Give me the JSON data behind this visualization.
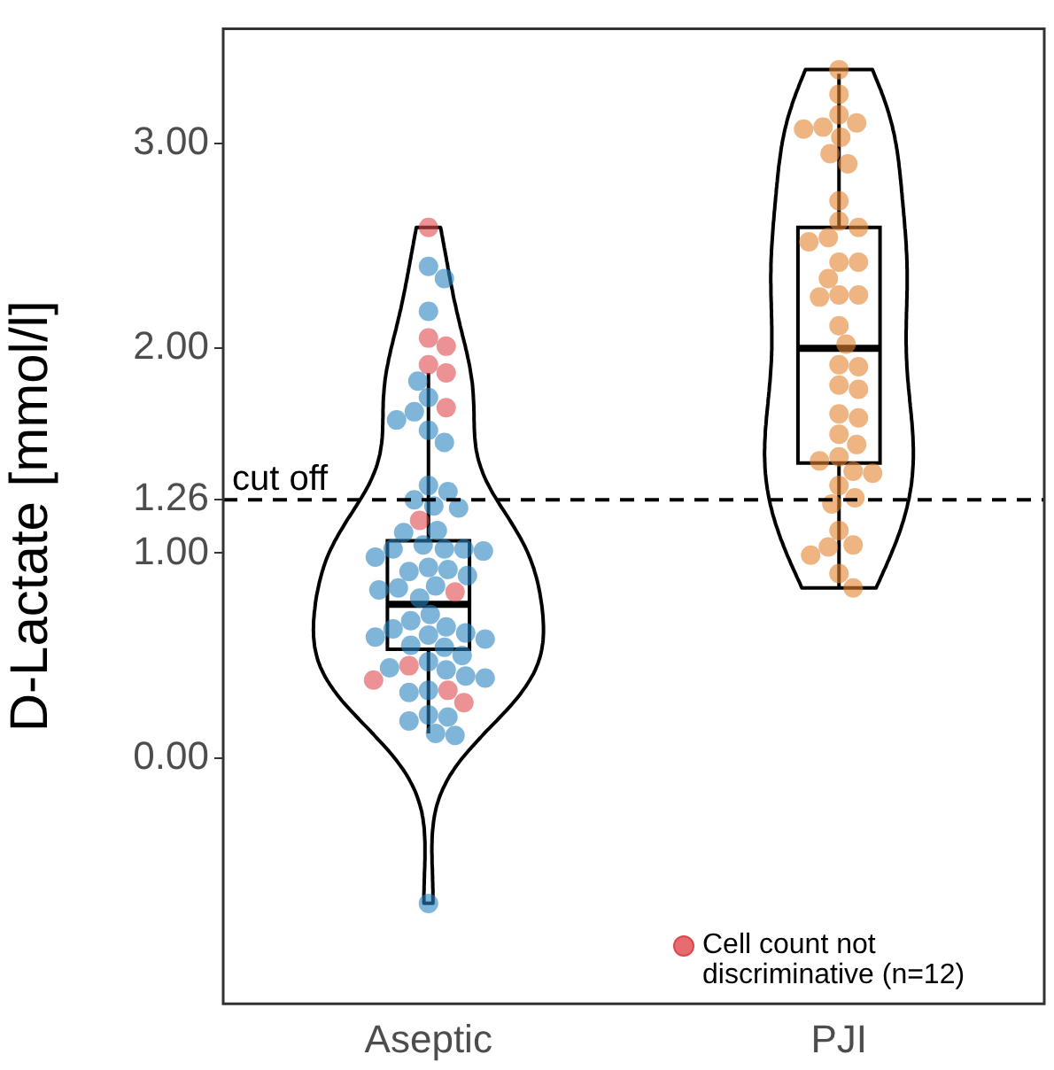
{
  "chart_data": {
    "type": "box",
    "ylabel": "D-Lactate [mmol/l]",
    "categories": [
      "Aseptic",
      "PJI"
    ],
    "boxes": [
      {
        "low": 0.12,
        "q1": 0.53,
        "median": 0.75,
        "q3": 1.06,
        "high": 1.88
      },
      {
        "low": 0.83,
        "q1": 1.44,
        "median": 2.0,
        "q3": 2.59,
        "high": 3.34
      }
    ],
    "ylim": [
      -1.2,
      3.56
    ],
    "yticks": [
      {
        "value": 0,
        "label": "0.00"
      },
      {
        "value": 1,
        "label": "1.00"
      },
      {
        "value": 1.26,
        "label": "1.26"
      },
      {
        "value": 2,
        "label": "2.00"
      },
      {
        "value": 3,
        "label": "3.00"
      }
    ],
    "ref_lines": [
      {
        "axis": "y",
        "value": 1.26,
        "label": "cut off",
        "line_style": "dashed",
        "color": "#000000"
      }
    ],
    "grid": false,
    "legend": "bottom right",
    "marker": "circle",
    "series": [
      {
        "type": "scatter",
        "color": "#2b83c1",
        "x": [
          "Aseptic",
          "Aseptic",
          "Aseptic",
          "Aseptic",
          "Aseptic",
          "Aseptic",
          "Aseptic",
          "Aseptic",
          "Aseptic",
          "Aseptic",
          "Aseptic",
          "Aseptic",
          "Aseptic",
          "Aseptic",
          "Aseptic",
          "Aseptic",
          "Aseptic",
          "Aseptic",
          "Aseptic",
          "Aseptic",
          "Aseptic",
          "Aseptic",
          "Aseptic",
          "Aseptic",
          "Aseptic",
          "Aseptic",
          "Aseptic",
          "Aseptic",
          "Aseptic",
          "Aseptic",
          "Aseptic",
          "Aseptic",
          "Aseptic",
          "Aseptic",
          "Aseptic",
          "Aseptic",
          "Aseptic",
          "Aseptic",
          "Aseptic",
          "Aseptic",
          "Aseptic",
          "Aseptic",
          "Aseptic",
          "Aseptic",
          "Aseptic",
          "Aseptic",
          "Aseptic",
          "Aseptic",
          "Aseptic",
          "Aseptic",
          "Aseptic",
          "Aseptic",
          "Aseptic",
          "Aseptic"
        ],
        "values": [
          2.4,
          2.34,
          2.18,
          1.84,
          1.76,
          1.69,
          1.65,
          1.6,
          1.54,
          1.33,
          1.3,
          1.26,
          1.23,
          1.22,
          1.11,
          1.1,
          1.04,
          1.02,
          1.02,
          1.02,
          1.01,
          0.98,
          0.93,
          0.92,
          0.91,
          0.89,
          0.84,
          0.83,
          0.82,
          0.78,
          0.7,
          0.67,
          0.64,
          0.63,
          0.61,
          0.6,
          0.59,
          0.58,
          0.55,
          0.54,
          0.5,
          0.47,
          0.44,
          0.43,
          0.4,
          0.39,
          0.33,
          0.32,
          0.21,
          0.2,
          0.18,
          0.12,
          0.11,
          -0.71
        ]
      },
      {
        "type": "scatter",
        "color": "#e2832e",
        "x": [
          "PJI",
          "PJI",
          "PJI",
          "PJI",
          "PJI",
          "PJI",
          "PJI",
          "PJI",
          "PJI",
          "PJI",
          "PJI",
          "PJI",
          "PJI",
          "PJI",
          "PJI",
          "PJI",
          "PJI",
          "PJI",
          "PJI",
          "PJI",
          "PJI",
          "PJI",
          "PJI",
          "PJI",
          "PJI",
          "PJI",
          "PJI",
          "PJI",
          "PJI",
          "PJI",
          "PJI",
          "PJI",
          "PJI",
          "PJI",
          "PJI",
          "PJI",
          "PJI",
          "PJI",
          "PJI",
          "PJI",
          "PJI",
          "PJI",
          "PJI"
        ],
        "values": [
          3.36,
          3.24,
          3.14,
          3.08,
          3.07,
          3.1,
          3.03,
          2.95,
          2.9,
          2.72,
          2.62,
          2.59,
          2.54,
          2.52,
          2.42,
          2.42,
          2.34,
          2.26,
          2.26,
          2.25,
          2.11,
          2.02,
          1.92,
          1.91,
          1.82,
          1.8,
          1.66,
          1.68,
          1.58,
          1.53,
          1.47,
          1.45,
          1.4,
          1.39,
          1.33,
          1.27,
          1.24,
          1.11,
          1.04,
          1.03,
          0.99,
          0.9,
          0.83
        ]
      },
      {
        "type": "scatter",
        "name": "Cell count not discriminative (n=12)",
        "color": "#e0474c",
        "x": [
          "Aseptic",
          "Aseptic",
          "Aseptic",
          "Aseptic",
          "Aseptic",
          "Aseptic",
          "Aseptic",
          "Aseptic",
          "Aseptic",
          "Aseptic",
          "Aseptic",
          "Aseptic"
        ],
        "values": [
          2.59,
          2.05,
          2.01,
          1.92,
          1.88,
          1.71,
          1.16,
          0.81,
          0.45,
          0.38,
          0.33,
          0.27
        ]
      }
    ]
  }
}
